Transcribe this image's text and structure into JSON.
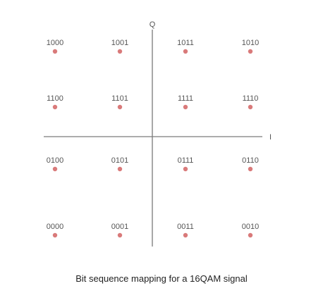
{
  "axes": {
    "i_label": "I",
    "q_label": "Q"
  },
  "colors": {
    "point": "#d97a7a",
    "axis": "#7a7a7a",
    "text": "#555555"
  },
  "constellation": {
    "columns": [
      -3,
      -1,
      1,
      3
    ],
    "rows": [
      3,
      1,
      -1,
      -3
    ],
    "points": [
      {
        "i": -3,
        "q": 3,
        "bits": "1000"
      },
      {
        "i": -1,
        "q": 3,
        "bits": "1001"
      },
      {
        "i": 1,
        "q": 3,
        "bits": "1011"
      },
      {
        "i": 3,
        "q": 3,
        "bits": "1010"
      },
      {
        "i": -3,
        "q": 1,
        "bits": "1100"
      },
      {
        "i": -1,
        "q": 1,
        "bits": "1101"
      },
      {
        "i": 1,
        "q": 1,
        "bits": "1111"
      },
      {
        "i": 3,
        "q": 1,
        "bits": "1110"
      },
      {
        "i": -3,
        "q": -1,
        "bits": "0100"
      },
      {
        "i": -1,
        "q": -1,
        "bits": "0101"
      },
      {
        "i": 1,
        "q": -1,
        "bits": "0111"
      },
      {
        "i": 3,
        "q": -1,
        "bits": "0110"
      },
      {
        "i": -3,
        "q": -3,
        "bits": "0000"
      },
      {
        "i": -1,
        "q": -3,
        "bits": "0001"
      },
      {
        "i": 1,
        "q": -3,
        "bits": "0011"
      },
      {
        "i": 3,
        "q": -3,
        "bits": "0010"
      }
    ]
  },
  "caption": "Bit sequence mapping for a 16QAM signal"
}
